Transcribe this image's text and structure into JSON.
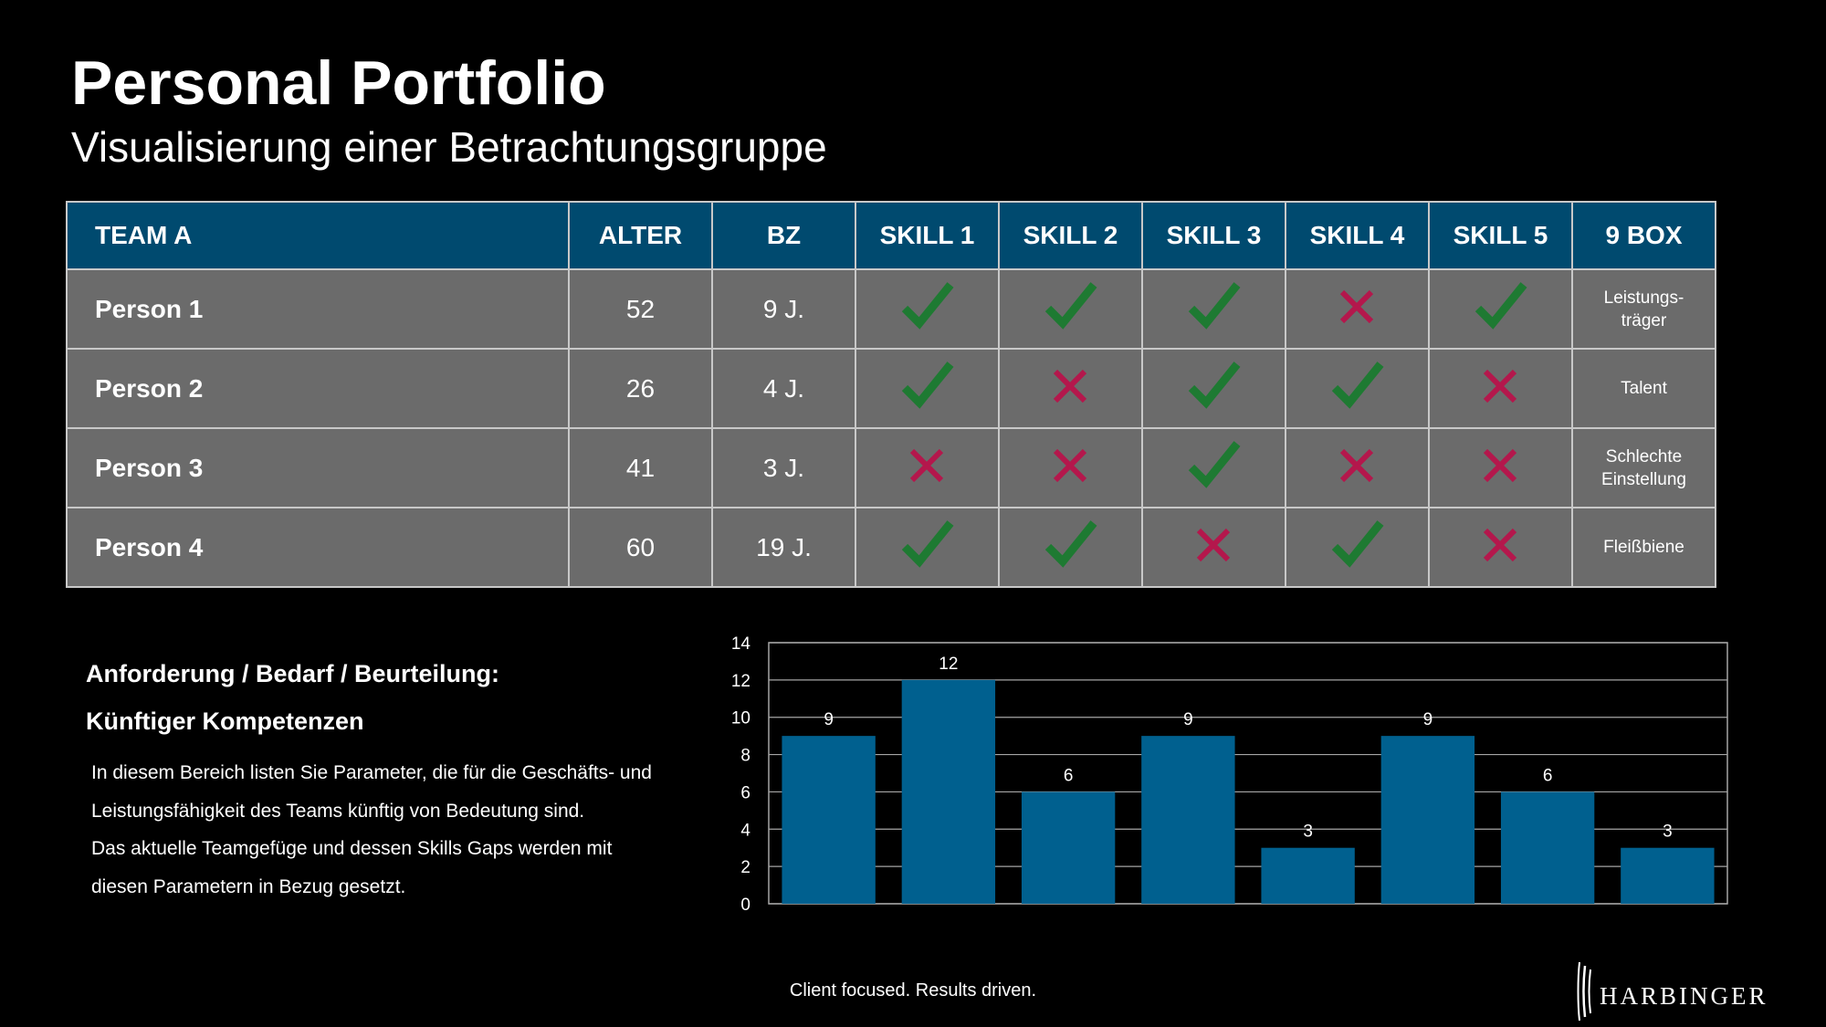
{
  "header": {
    "title": "Personal Portfolio",
    "subtitle": "Visualisierung einer Betrachtungsgruppe"
  },
  "table": {
    "columns": [
      "TEAM A",
      "ALTER",
      "BZ",
      "SKILL 1",
      "SKILL 2",
      "SKILL 3",
      "SKILL 4",
      "SKILL 5",
      "9 BOX"
    ],
    "rows": [
      {
        "name": "Person 1",
        "alter": "52",
        "bz": "9 J.",
        "skills": [
          true,
          true,
          true,
          false,
          true
        ],
        "box": [
          "Leistungs-",
          "träger"
        ]
      },
      {
        "name": "Person 2",
        "alter": "26",
        "bz": "4 J.",
        "skills": [
          true,
          false,
          true,
          true,
          false
        ],
        "box": [
          "Talent"
        ]
      },
      {
        "name": "Person 3",
        "alter": "41",
        "bz": "3 J.",
        "skills": [
          false,
          false,
          true,
          false,
          false
        ],
        "box": [
          "Schlechte",
          "Einstellung"
        ]
      },
      {
        "name": "Person 4",
        "alter": "60",
        "bz": "19 J.",
        "skills": [
          true,
          true,
          false,
          true,
          false
        ],
        "box": [
          "Fleißbiene"
        ]
      }
    ],
    "icons": {
      "yes": "check-icon",
      "no": "cross-icon"
    },
    "colors": {
      "header_bg": "#004a6f",
      "cell_bg": "#6b6b6b",
      "check": "#1e7a32",
      "cross": "#b4174c"
    }
  },
  "requirements": {
    "heading_1": "Anforderung / Bedarf / Beurteilung:",
    "heading_2": "Künftiger Kompetenzen",
    "lines": [
      "In diesem Bereich listen Sie Parameter, die für die Geschäfts- und",
      "Leistungsfähigkeit des Teams künftig von Bedeutung sind.",
      "Das aktuelle Teamgefüge und dessen Skills Gaps werden mit",
      "diesen Parametern in Bezug gesetzt."
    ]
  },
  "chart_data": {
    "type": "bar",
    "title": "",
    "xlabel": "",
    "ylabel": "",
    "values": [
      9,
      12,
      6,
      9,
      3,
      9,
      6,
      3
    ],
    "ylim": [
      0,
      14
    ],
    "yticks": [
      0,
      2,
      4,
      6,
      8,
      10,
      12,
      14
    ],
    "grid": true,
    "data_labels": true,
    "bar_color": "#00608f"
  },
  "footer": {
    "tagline": "Client focused. Results driven.",
    "logo": "HARBINGER"
  }
}
